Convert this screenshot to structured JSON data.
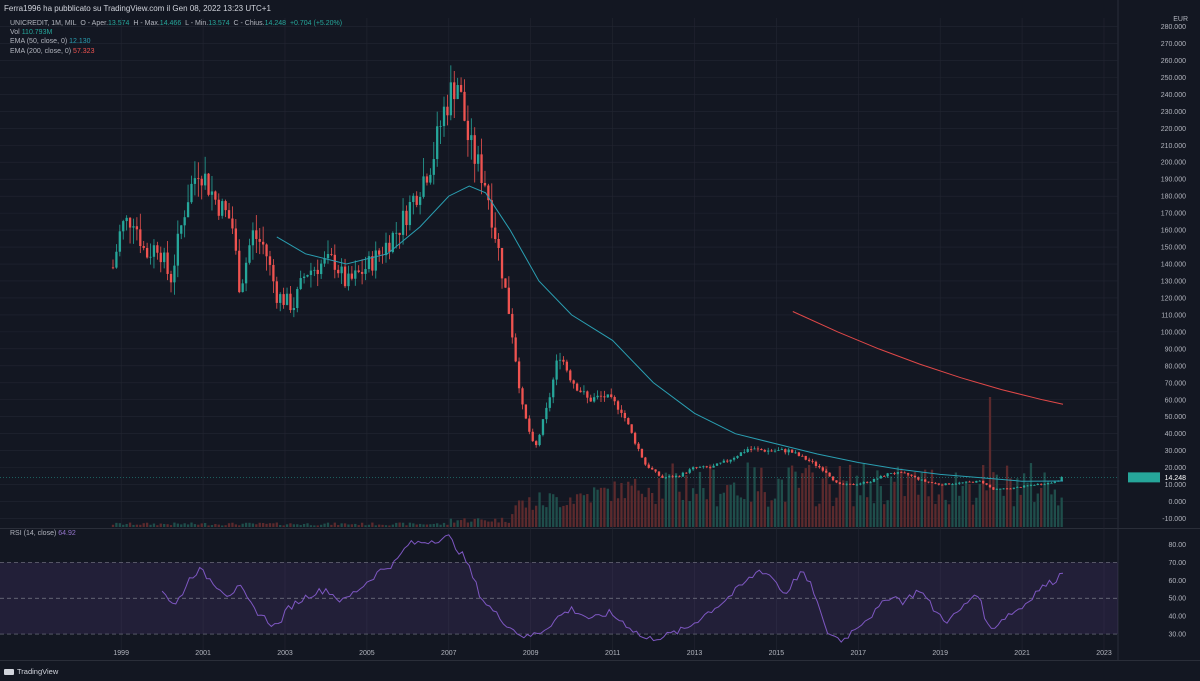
{
  "header": {
    "published": "Ferra1996 ha pubblicato su TradingView.com il Gen 08, 2022 13:23 UTC+1"
  },
  "legend": {
    "symbol": "UNICREDIT, 1M, MIL",
    "ohlc_prefix": "O - Aper.",
    "open": "13.574",
    "high_prefix": "H - Max.",
    "high": "14.466",
    "low_prefix": "L - Min.",
    "low": "13.574",
    "close_prefix": "C - Chius.",
    "close": "14.248",
    "change": "+0.704 (+5.20%)",
    "vol_label": "Vol",
    "vol_value": "110.793M",
    "ema50_label": "EMA (50, close, 0)",
    "ema50_value": "12.130",
    "ema200_label": "EMA (200, close, 0)",
    "ema200_value": "57.323"
  },
  "currency": "EUR",
  "rsi": {
    "label": "RSI (14, close)",
    "value": "64.92"
  },
  "footer": {
    "brand": "TradingView"
  },
  "colors": {
    "up": "#26a69a",
    "down": "#ef5350",
    "ema50": "#2a9fb2",
    "ema200": "#e04848",
    "rsi": "#7e57c2",
    "bg": "#131722",
    "grid": "#232632"
  },
  "chart_data": {
    "type": "candlestick",
    "title": "UNICREDIT, 1M, MIL",
    "ylabel": "EUR",
    "ylim": [
      -15,
      285
    ],
    "y_ticks": [
      -10,
      0,
      10,
      20,
      30,
      40,
      50,
      60,
      70,
      80,
      90,
      100,
      110,
      120,
      130,
      140,
      150,
      160,
      170,
      180,
      190,
      200,
      210,
      220,
      230,
      240,
      250,
      260,
      270,
      280
    ],
    "y_tick_labels": [
      "-10.000",
      "0.000",
      "10.000",
      "20.000",
      "30.000",
      "40.000",
      "50.000",
      "60.000",
      "70.000",
      "80.000",
      "90.000",
      "100.000",
      "110.000",
      "120.000",
      "130.000",
      "140.000",
      "150.000",
      "160.000",
      "170.000",
      "180.000",
      "190.000",
      "200.000",
      "210.000",
      "220.000",
      "230.000",
      "240.000",
      "250.000",
      "260.000",
      "270.000",
      "280.000"
    ],
    "x_ticks": [
      "1999",
      "2001",
      "2003",
      "2005",
      "2007",
      "2009",
      "2011",
      "2013",
      "2015",
      "2017",
      "2019",
      "2021",
      "2023"
    ],
    "last_price": 14.248,
    "last_price_label": "14.248",
    "price_keypoints": [
      [
        1998.8,
        138
      ],
      [
        1999.0,
        162
      ],
      [
        1999.3,
        168
      ],
      [
        1999.6,
        145
      ],
      [
        1999.9,
        152
      ],
      [
        2000.2,
        130
      ],
      [
        2000.6,
        178
      ],
      [
        2000.9,
        198
      ],
      [
        2001.3,
        178
      ],
      [
        2001.7,
        165
      ],
      [
        2001.9,
        125
      ],
      [
        2002.2,
        158
      ],
      [
        2002.5,
        150
      ],
      [
        2002.8,
        122
      ],
      [
        2003.2,
        115
      ],
      [
        2003.5,
        135
      ],
      [
        2003.9,
        140
      ],
      [
        2004.2,
        142
      ],
      [
        2004.5,
        128
      ],
      [
        2004.9,
        136
      ],
      [
        2005.3,
        146
      ],
      [
        2005.8,
        162
      ],
      [
        2006.2,
        182
      ],
      [
        2006.6,
        202
      ],
      [
        2006.9,
        232
      ],
      [
        2007.2,
        250
      ],
      [
        2007.5,
        210
      ],
      [
        2007.9,
        188
      ],
      [
        2008.2,
        150
      ],
      [
        2008.5,
        108
      ],
      [
        2008.8,
        55
      ],
      [
        2009.1,
        30
      ],
      [
        2009.4,
        55
      ],
      [
        2009.7,
        88
      ],
      [
        2010.0,
        72
      ],
      [
        2010.4,
        60
      ],
      [
        2010.8,
        62
      ],
      [
        2011.2,
        55
      ],
      [
        2011.5,
        38
      ],
      [
        2011.8,
        22
      ],
      [
        2012.2,
        14
      ],
      [
        2012.6,
        15
      ],
      [
        2013.0,
        20
      ],
      [
        2013.4,
        20
      ],
      [
        2013.8,
        24
      ],
      [
        2014.3,
        31
      ],
      [
        2014.8,
        30
      ],
      [
        2015.3,
        30
      ],
      [
        2015.8,
        24
      ],
      [
        2016.2,
        18
      ],
      [
        2016.5,
        10
      ],
      [
        2016.9,
        10
      ],
      [
        2017.3,
        12
      ],
      [
        2017.8,
        17
      ],
      [
        2018.2,
        16
      ],
      [
        2018.6,
        12
      ],
      [
        2019.0,
        10
      ],
      [
        2019.5,
        11
      ],
      [
        2020.0,
        12
      ],
      [
        2020.3,
        7
      ],
      [
        2020.8,
        8
      ],
      [
        2021.3,
        10
      ],
      [
        2021.7,
        11
      ],
      [
        2022.0,
        14.248
      ]
    ],
    "ema50_keypoints": [
      [
        2002.8,
        156
      ],
      [
        2003.5,
        146
      ],
      [
        2004.5,
        140
      ],
      [
        2005.5,
        146
      ],
      [
        2006.3,
        162
      ],
      [
        2007.0,
        180
      ],
      [
        2007.5,
        186
      ],
      [
        2007.9,
        182
      ],
      [
        2008.5,
        160
      ],
      [
        2009.2,
        130
      ],
      [
        2010.0,
        110
      ],
      [
        2011.0,
        95
      ],
      [
        2012.0,
        70
      ],
      [
        2013.0,
        52
      ],
      [
        2014.0,
        40
      ],
      [
        2015.0,
        34
      ],
      [
        2016.0,
        28
      ],
      [
        2017.0,
        23
      ],
      [
        2018.0,
        19
      ],
      [
        2019.0,
        16
      ],
      [
        2020.0,
        14
      ],
      [
        2021.0,
        12
      ],
      [
        2022.0,
        12.13
      ]
    ],
    "ema200_keypoints": [
      [
        2015.4,
        112
      ],
      [
        2016.5,
        100
      ],
      [
        2017.5,
        90
      ],
      [
        2018.5,
        81
      ],
      [
        2019.5,
        73
      ],
      [
        2020.5,
        66
      ],
      [
        2021.5,
        60
      ],
      [
        2022.0,
        57.323
      ]
    ],
    "rsi_ylim": [
      25,
      87
    ],
    "rsi_ticks": [
      30,
      40,
      50,
      60,
      70,
      80
    ],
    "rsi_tick_labels": [
      "30.00",
      "40.00",
      "50.00",
      "60.00",
      "70.00",
      "80.00"
    ],
    "rsi_band": [
      30,
      70
    ],
    "rsi_keypoints": [
      [
        2000.0,
        55
      ],
      [
        2000.3,
        45
      ],
      [
        2000.7,
        62
      ],
      [
        2000.9,
        66
      ],
      [
        2001.2,
        60
      ],
      [
        2001.6,
        52
      ],
      [
        2001.9,
        56
      ],
      [
        2002.2,
        45
      ],
      [
        2002.6,
        37
      ],
      [
        2002.8,
        34
      ],
      [
        2003.1,
        45
      ],
      [
        2003.6,
        52
      ],
      [
        2004.0,
        55
      ],
      [
        2004.4,
        48
      ],
      [
        2004.9,
        57
      ],
      [
        2005.3,
        65
      ],
      [
        2005.7,
        70
      ],
      [
        2006.0,
        80
      ],
      [
        2006.5,
        82
      ],
      [
        2007.0,
        84
      ],
      [
        2007.4,
        72
      ],
      [
        2007.8,
        50
      ],
      [
        2008.2,
        40
      ],
      [
        2008.6,
        32
      ],
      [
        2008.9,
        28
      ],
      [
        2009.3,
        32
      ],
      [
        2009.7,
        40
      ],
      [
        2010.0,
        44
      ],
      [
        2010.5,
        38
      ],
      [
        2010.9,
        42
      ],
      [
        2011.3,
        36
      ],
      [
        2011.8,
        27
      ],
      [
        2012.3,
        29
      ],
      [
        2012.8,
        33
      ],
      [
        2013.2,
        40
      ],
      [
        2013.7,
        48
      ],
      [
        2014.2,
        58
      ],
      [
        2014.6,
        66
      ],
      [
        2014.9,
        62
      ],
      [
        2015.2,
        52
      ],
      [
        2015.6,
        65
      ],
      [
        2015.9,
        55
      ],
      [
        2016.2,
        32
      ],
      [
        2016.6,
        26
      ],
      [
        2017.0,
        35
      ],
      [
        2017.4,
        42
      ],
      [
        2017.8,
        52
      ],
      [
        2018.1,
        48
      ],
      [
        2018.5,
        55
      ],
      [
        2018.9,
        42
      ],
      [
        2019.2,
        37
      ],
      [
        2019.6,
        46
      ],
      [
        2019.9,
        54
      ],
      [
        2020.2,
        32
      ],
      [
        2020.6,
        40
      ],
      [
        2021.0,
        45
      ],
      [
        2021.4,
        55
      ],
      [
        2021.8,
        60
      ],
      [
        2022.0,
        64.92
      ]
    ]
  }
}
